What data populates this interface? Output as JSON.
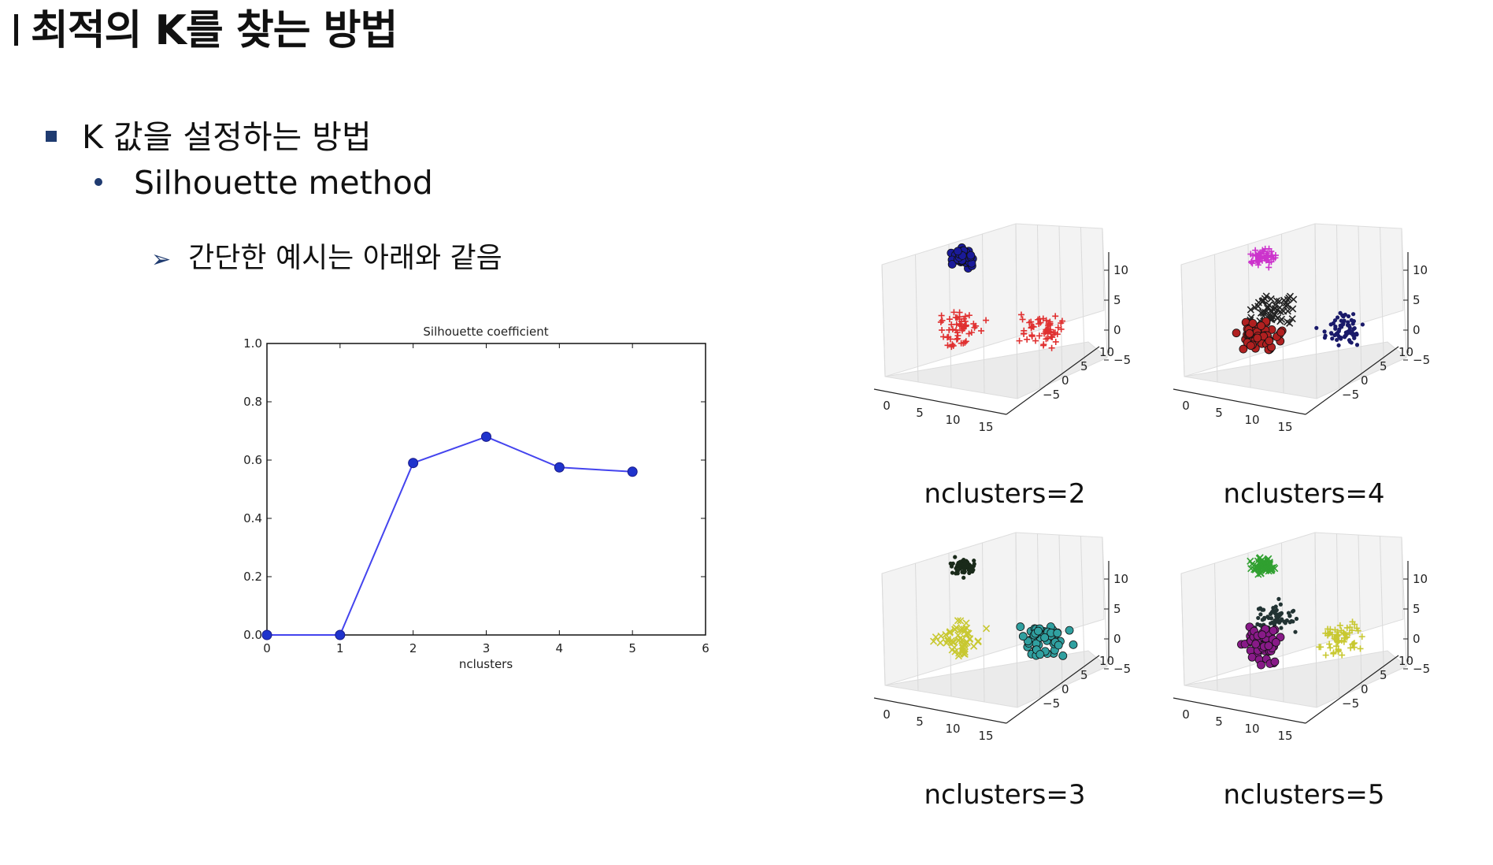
{
  "slide": {
    "title": "최적의 K를 찾는 방법",
    "bullet_1": "K 값을 설정하는 방법",
    "bullet_2": "Silhouette method",
    "bullet_3": "간단한 예시는 아래와 같음"
  },
  "chart_data": {
    "type": "line",
    "title": "Silhouette coefficient",
    "xlabel": "nclusters",
    "ylabel": "",
    "x": [
      0,
      1,
      2,
      3,
      4,
      5
    ],
    "values": [
      0.0,
      0.0,
      0.59,
      0.68,
      0.575,
      0.56
    ],
    "xlim": [
      0,
      6
    ],
    "ylim": [
      0.0,
      1.0
    ],
    "xticks": [
      "0",
      "1",
      "2",
      "3",
      "4",
      "5",
      "6"
    ],
    "yticks": [
      "0.0",
      "0.2",
      "0.4",
      "0.6",
      "0.8",
      "1.0"
    ],
    "line_color": "#4444ee",
    "marker_color": "#1f33cc",
    "grid": false
  },
  "scatter_plots": [
    {
      "caption": "nclusters=2",
      "clusters": [
        {
          "color": "#1a1a9a",
          "marker": "circle",
          "center": [
            0.38,
            0.22
          ]
        },
        {
          "color": "#e03030",
          "marker": "plus",
          "center": [
            0.37,
            0.57
          ]
        },
        {
          "color": "#e03030",
          "marker": "plus",
          "center": [
            0.72,
            0.57
          ]
        }
      ]
    },
    {
      "caption": "nclusters=4",
      "clusters": [
        {
          "color": "#cc33cc",
          "marker": "plus",
          "center": [
            0.38,
            0.22
          ]
        },
        {
          "color": "#222222",
          "marker": "x",
          "center": [
            0.42,
            0.48
          ]
        },
        {
          "color": "#b02020",
          "marker": "circle",
          "center": [
            0.38,
            0.6
          ]
        },
        {
          "color": "#1a1a6a",
          "marker": "dot",
          "center": [
            0.72,
            0.57
          ]
        }
      ]
    },
    {
      "caption": "nclusters=3",
      "clusters": [
        {
          "color": "#1a2a1a",
          "marker": "dot",
          "center": [
            0.38,
            0.22
          ]
        },
        {
          "color": "#c8c830",
          "marker": "x",
          "center": [
            0.37,
            0.57
          ]
        },
        {
          "color": "#30a0a0",
          "marker": "circle",
          "center": [
            0.72,
            0.57
          ]
        }
      ]
    },
    {
      "caption": "nclusters=5",
      "clusters": [
        {
          "color": "#30a030",
          "marker": "x",
          "center": [
            0.38,
            0.22
          ]
        },
        {
          "color": "#223333",
          "marker": "dot",
          "center": [
            0.44,
            0.47
          ]
        },
        {
          "color": "#881a88",
          "marker": "circle",
          "center": [
            0.38,
            0.6
          ]
        },
        {
          "color": "#c8c830",
          "marker": "plus",
          "center": [
            0.72,
            0.57
          ]
        }
      ]
    }
  ],
  "axes3d": {
    "x_ticks": [
      "0",
      "5",
      "10",
      "15"
    ],
    "y_ticks": [
      "10",
      "5",
      "0",
      "−5"
    ],
    "z_ticks": [
      "10",
      "5",
      "0",
      "−5"
    ]
  }
}
